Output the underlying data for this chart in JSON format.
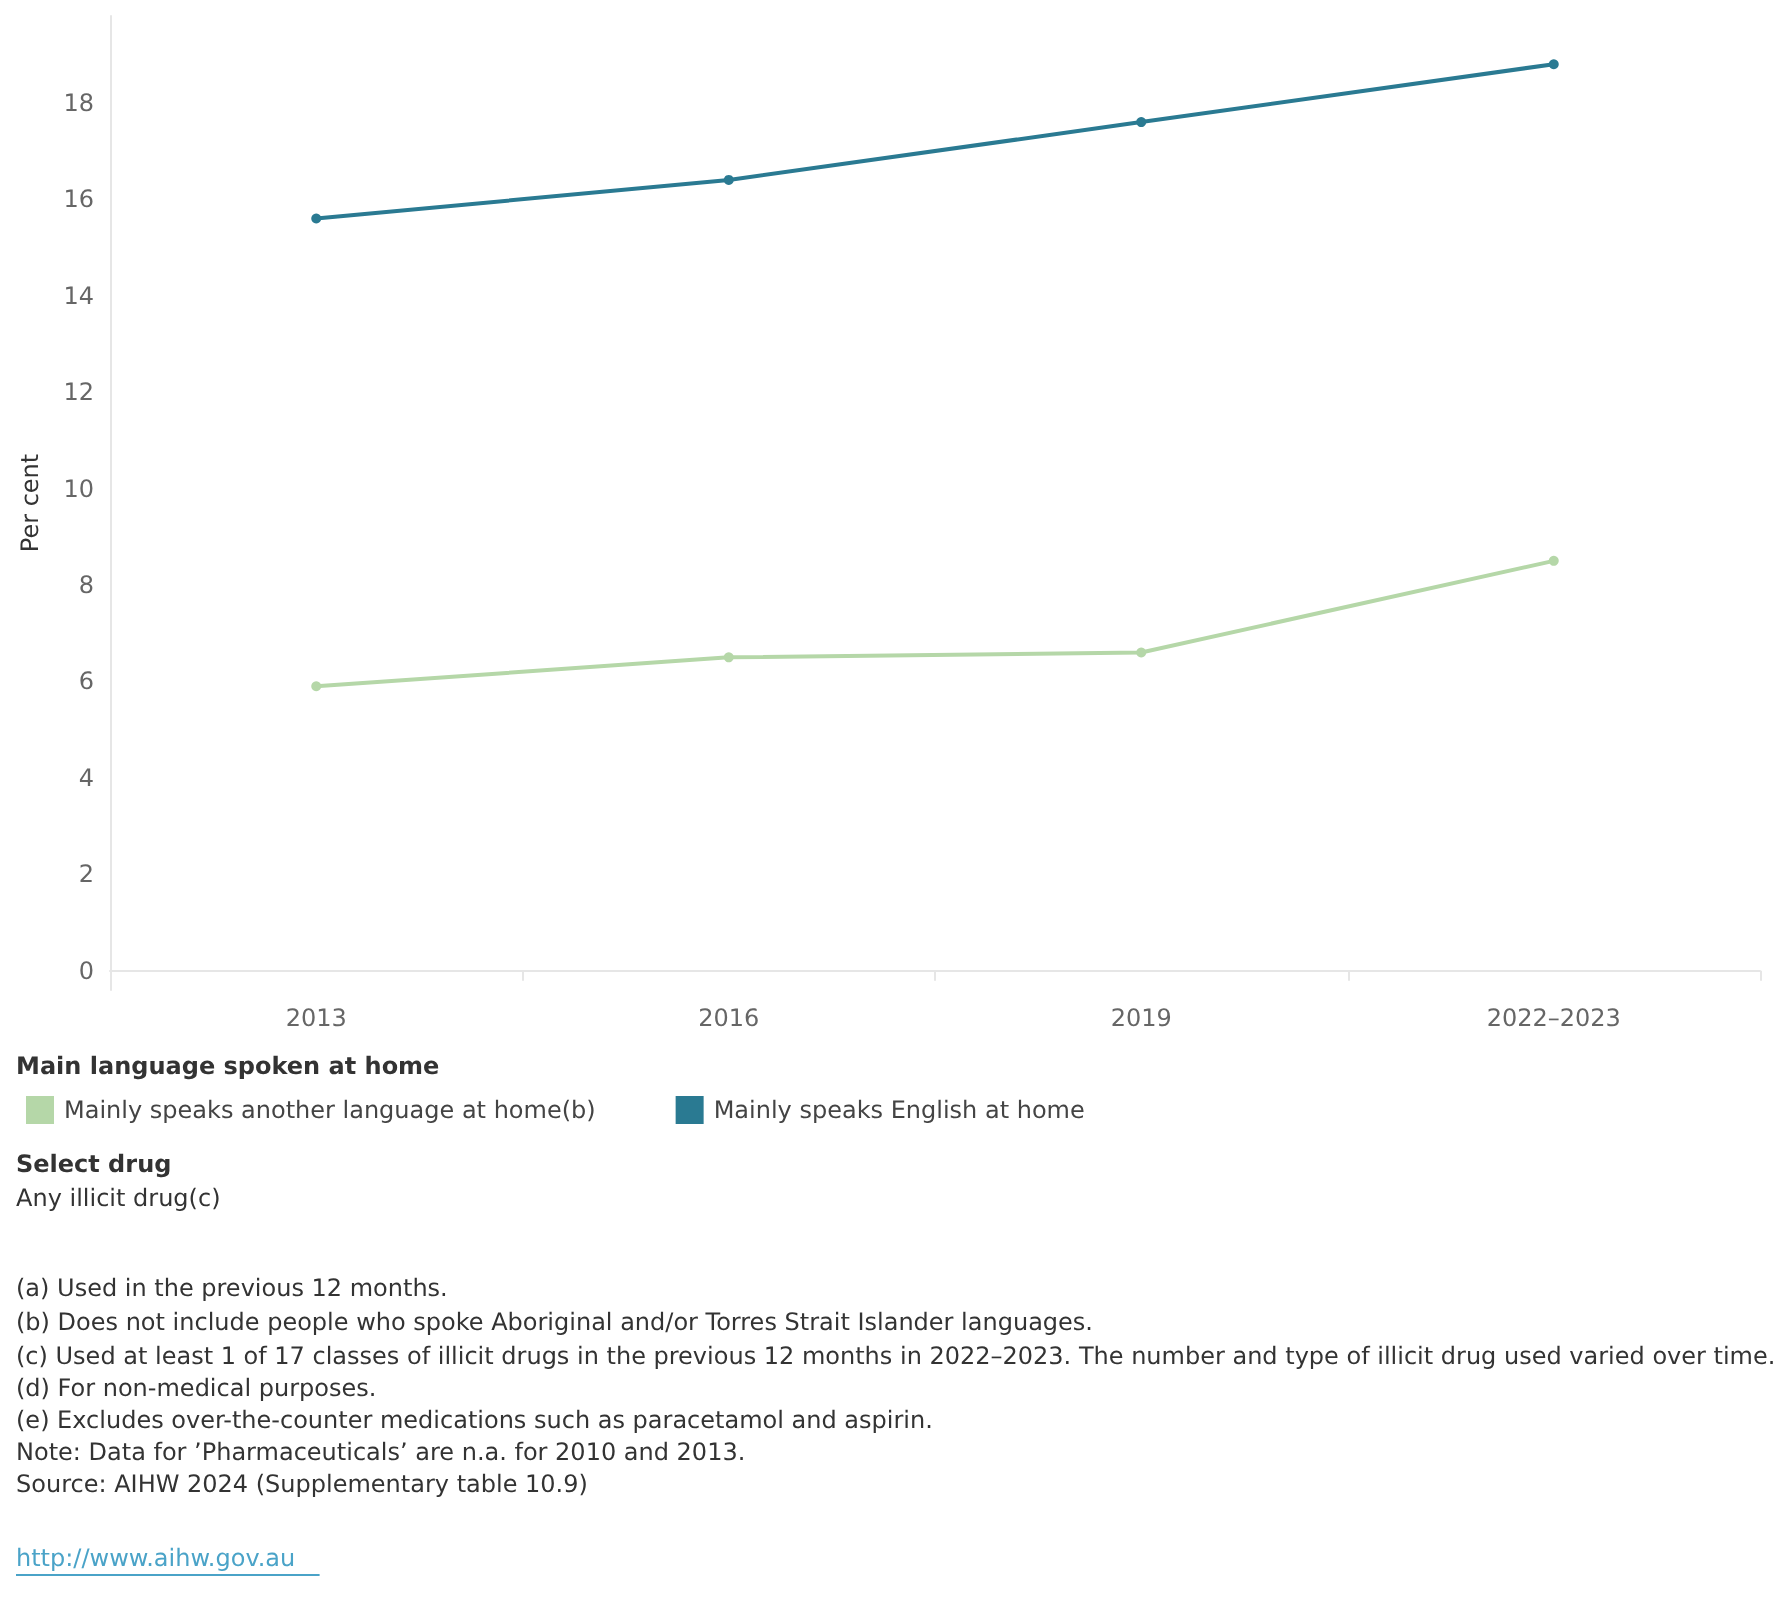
{
  "chart_data": {
    "type": "line",
    "ylabel": "Per cent",
    "legend_title": "Main language spoken at home",
    "categories": [
      "2013",
      "2016",
      "2019",
      "2022–2023"
    ],
    "series": [
      {
        "name": "Mainly speaks another language at home(b)",
        "color": "#b5d7a8",
        "values": [
          5.9,
          6.5,
          6.6,
          8.5
        ]
      },
      {
        "name": "Mainly speaks English at home",
        "color": "#2a7a92",
        "values": [
          15.6,
          16.4,
          17.6,
          18.8
        ]
      }
    ],
    "ylim": [
      -0.4,
      19.8
    ],
    "yticks": [
      0,
      2,
      4,
      6,
      8,
      10,
      12,
      14,
      16,
      18
    ],
    "grid": false,
    "legend": "bottom left",
    "marker": "circle",
    "line_style": "solid",
    "annotations": [
      "Select drug",
      "Any illicit drug(c)",
      "(a) Used in the previous 12 months.",
      "(b) Does not include people who spoke Aboriginal and/or Torres Strait Islander languages.",
      "(c) Used at least 1 of 17 classes of illicit drugs in the previous 12 months in 2022–2023. The number and type of illicit drug used varied over time.",
      "(d) For non-medical purposes.",
      "(e) Excludes over-the-counter medications such as paracetamol and aspirin.",
      "Note: Data for ’Pharmaceuticals’ are n.a. for 2010 and 2013.",
      "Source: AIHW 2024 (Supplementary table 10.9)",
      "http://www.aihw.gov.au"
    ]
  }
}
